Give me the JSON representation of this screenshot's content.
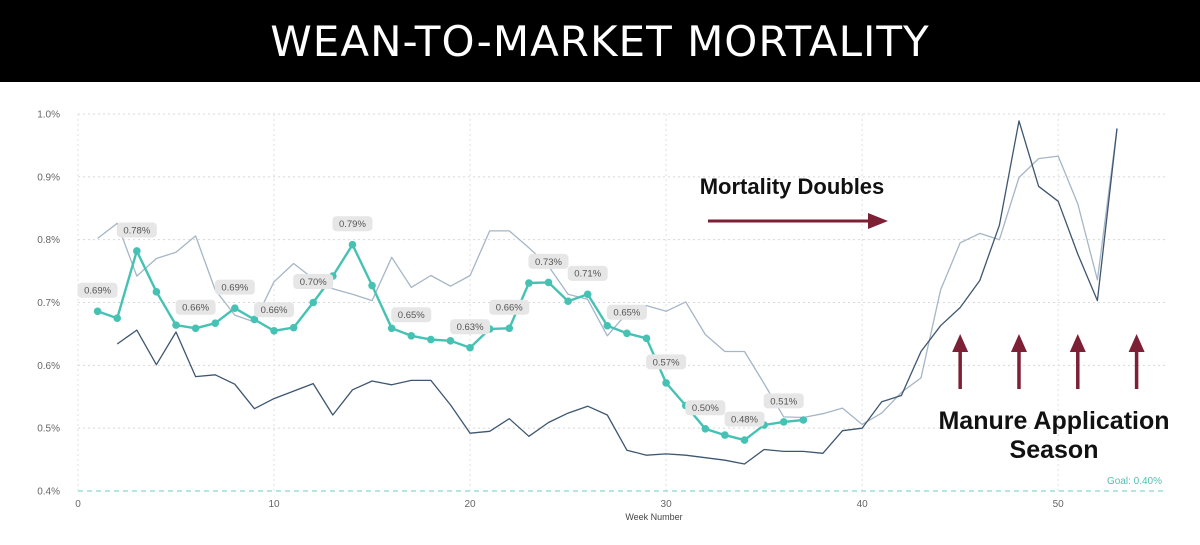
{
  "header": {
    "title": "WEAN-TO-MARKET MORTALITY"
  },
  "chart_data": {
    "type": "line",
    "title": "WEAN-TO-MARKET MORTALITY",
    "xlabel": "Week Number",
    "ylabel": "",
    "xlim": [
      0,
      55.5
    ],
    "ylim": [
      0.4,
      1.0
    ],
    "x_ticks": [
      0,
      10,
      20,
      30,
      40,
      50
    ],
    "y_ticks": [
      {
        "v": 0.4,
        "label": "0.4%"
      },
      {
        "v": 0.5,
        "label": "0.5%"
      },
      {
        "v": 0.6,
        "label": "0.6%"
      },
      {
        "v": 0.7,
        "label": "0.7%"
      },
      {
        "v": 0.8,
        "label": "0.8%"
      },
      {
        "v": 0.9,
        "label": "0.9%"
      },
      {
        "v": 1.0,
        "label": "1.0%"
      }
    ],
    "grid": true,
    "series": [
      {
        "name": "",
        "color": "#a5b6c6",
        "points": [
          [
            1,
            0.802
          ],
          [
            2,
            0.826
          ],
          [
            3,
            0.742
          ],
          [
            4,
            0.77
          ],
          [
            5,
            0.78
          ],
          [
            6,
            0.806
          ],
          [
            7,
            0.72
          ],
          [
            8,
            0.68
          ],
          [
            9,
            0.669
          ],
          [
            10,
            0.733
          ],
          [
            11,
            0.762
          ],
          [
            12,
            0.738
          ],
          [
            13,
            0.722
          ],
          [
            14,
            0.713
          ],
          [
            15,
            0.703
          ],
          [
            16,
            0.772
          ],
          [
            17,
            0.724
          ],
          [
            18,
            0.743
          ],
          [
            19,
            0.726
          ],
          [
            20,
            0.743
          ],
          [
            21,
            0.814
          ],
          [
            22,
            0.814
          ],
          [
            23,
            0.787
          ],
          [
            24,
            0.758
          ],
          [
            25,
            0.713
          ],
          [
            26,
            0.705
          ],
          [
            27,
            0.647
          ],
          [
            28,
            0.683
          ],
          [
            29,
            0.695
          ],
          [
            30,
            0.686
          ],
          [
            31,
            0.701
          ],
          [
            32,
            0.649
          ],
          [
            33,
            0.622
          ],
          [
            34,
            0.622
          ],
          [
            35,
            0.571
          ],
          [
            36,
            0.518
          ],
          [
            37,
            0.517
          ],
          [
            38,
            0.523
          ],
          [
            39,
            0.532
          ],
          [
            40,
            0.506
          ],
          [
            41,
            0.524
          ],
          [
            42,
            0.557
          ],
          [
            43,
            0.58
          ],
          [
            44,
            0.72
          ],
          [
            45,
            0.795
          ],
          [
            46,
            0.81
          ],
          [
            47,
            0.8
          ],
          [
            48,
            0.899
          ],
          [
            49,
            0.929
          ],
          [
            50,
            0.933
          ],
          [
            51,
            0.857
          ],
          [
            52,
            0.736
          ],
          [
            53,
            0.977
          ]
        ]
      },
      {
        "name": "",
        "color": "#3e5670",
        "points": [
          [
            2,
            0.634
          ],
          [
            3,
            0.656
          ],
          [
            4,
            0.601
          ],
          [
            5,
            0.653
          ],
          [
            6,
            0.582
          ],
          [
            7,
            0.585
          ],
          [
            8,
            0.57
          ],
          [
            9,
            0.531
          ],
          [
            10,
            0.547
          ],
          [
            11,
            0.559
          ],
          [
            12,
            0.571
          ],
          [
            13,
            0.521
          ],
          [
            14,
            0.561
          ],
          [
            15,
            0.575
          ],
          [
            16,
            0.569
          ],
          [
            17,
            0.576
          ],
          [
            18,
            0.576
          ],
          [
            19,
            0.537
          ],
          [
            20,
            0.492
          ],
          [
            21,
            0.495
          ],
          [
            22,
            0.515
          ],
          [
            23,
            0.487
          ],
          [
            24,
            0.509
          ],
          [
            25,
            0.524
          ],
          [
            26,
            0.535
          ],
          [
            27,
            0.521
          ],
          [
            28,
            0.465
          ],
          [
            29,
            0.457
          ],
          [
            30,
            0.459
          ],
          [
            31,
            0.457
          ],
          [
            32,
            0.453
          ],
          [
            33,
            0.449
          ],
          [
            34,
            0.443
          ],
          [
            35,
            0.466
          ],
          [
            36,
            0.463
          ],
          [
            37,
            0.463
          ],
          [
            38,
            0.46
          ],
          [
            39,
            0.496
          ],
          [
            40,
            0.5
          ],
          [
            41,
            0.542
          ],
          [
            42,
            0.552
          ],
          [
            43,
            0.622
          ],
          [
            44,
            0.663
          ],
          [
            45,
            0.692
          ],
          [
            46,
            0.735
          ],
          [
            47,
            0.823
          ],
          [
            48,
            0.989
          ],
          [
            49,
            0.885
          ],
          [
            50,
            0.861
          ],
          [
            51,
            0.777
          ],
          [
            52,
            0.703
          ],
          [
            53,
            0.977
          ]
        ]
      },
      {
        "name": "",
        "color": "#46c2b4",
        "points": [
          [
            1,
            0.686
          ],
          [
            2,
            0.675
          ],
          [
            3,
            0.782
          ],
          [
            4,
            0.717
          ],
          [
            5,
            0.664
          ],
          [
            6,
            0.659
          ],
          [
            7,
            0.667
          ],
          [
            8,
            0.691
          ],
          [
            9,
            0.673
          ],
          [
            10,
            0.655
          ],
          [
            11,
            0.66
          ],
          [
            12,
            0.7
          ],
          [
            13,
            0.742
          ],
          [
            14,
            0.792
          ],
          [
            15,
            0.727
          ],
          [
            16,
            0.659
          ],
          [
            17,
            0.647
          ],
          [
            18,
            0.641
          ],
          [
            19,
            0.639
          ],
          [
            20,
            0.628
          ],
          [
            21,
            0.658
          ],
          [
            22,
            0.659
          ],
          [
            23,
            0.731
          ],
          [
            24,
            0.732
          ],
          [
            25,
            0.702
          ],
          [
            26,
            0.713
          ],
          [
            27,
            0.663
          ],
          [
            28,
            0.651
          ],
          [
            29,
            0.643
          ],
          [
            30,
            0.572
          ],
          [
            31,
            0.536
          ],
          [
            32,
            0.499
          ],
          [
            33,
            0.489
          ],
          [
            34,
            0.481
          ],
          [
            35,
            0.505
          ],
          [
            36,
            0.51
          ],
          [
            37,
            0.513
          ]
        ]
      }
    ],
    "data_labels": [
      {
        "x": 1,
        "y": 0.686,
        "text": "0.69%"
      },
      {
        "x": 3,
        "y": 0.782,
        "text": "0.78%"
      },
      {
        "x": 6,
        "y": 0.659,
        "text": "0.66%"
      },
      {
        "x": 8,
        "y": 0.691,
        "text": "0.69%"
      },
      {
        "x": 10,
        "y": 0.655,
        "text": "0.66%"
      },
      {
        "x": 12,
        "y": 0.7,
        "text": "0.70%"
      },
      {
        "x": 14,
        "y": 0.792,
        "text": "0.79%"
      },
      {
        "x": 17,
        "y": 0.647,
        "text": "0.65%"
      },
      {
        "x": 20,
        "y": 0.628,
        "text": "0.63%"
      },
      {
        "x": 22,
        "y": 0.659,
        "text": "0.66%"
      },
      {
        "x": 24,
        "y": 0.732,
        "text": "0.73%"
      },
      {
        "x": 26,
        "y": 0.713,
        "text": "0.71%"
      },
      {
        "x": 28,
        "y": 0.651,
        "text": "0.65%"
      },
      {
        "x": 30,
        "y": 0.572,
        "text": "0.57%"
      },
      {
        "x": 32,
        "y": 0.499,
        "text": "0.50%"
      },
      {
        "x": 34,
        "y": 0.481,
        "text": "0.48%"
      },
      {
        "x": 36,
        "y": 0.51,
        "text": "0.51%"
      }
    ],
    "goal": {
      "value": 0.4,
      "label": "Goal: 0.40%",
      "color": "#9adfd6"
    },
    "annotations": {
      "mortality_doubles": "Mortality Doubles",
      "manure_line1": "Manure Application",
      "manure_line2": "Season",
      "arrow_color": "#7d1f35",
      "up_arrow_weeks": [
        45,
        48,
        51,
        54
      ]
    }
  }
}
